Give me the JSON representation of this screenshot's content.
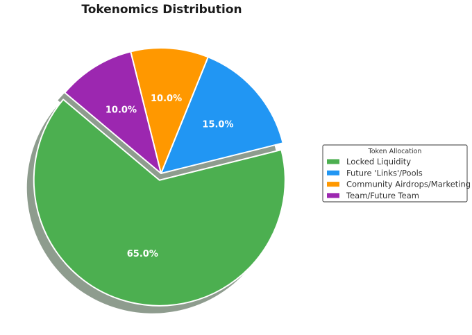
{
  "chart_data": {
    "type": "pie",
    "title": "Tokenomics Distribution",
    "categories": [
      "Locked Liquidity",
      "Future 'Links'/Pools",
      "Community Airdrops/Marketing",
      "Team/Future Team"
    ],
    "values": [
      65,
      15,
      10,
      10
    ],
    "labels": [
      "65.0%",
      "15.0%",
      "10.0%",
      "10.0%"
    ],
    "colors": [
      "#4caf50",
      "#2196f3",
      "#ff9800",
      "#9c27b0"
    ],
    "exploded": [
      "Locked Liquidity"
    ],
    "shadow": true,
    "legend": {
      "title": "Token Allocation",
      "placement": "right"
    }
  }
}
